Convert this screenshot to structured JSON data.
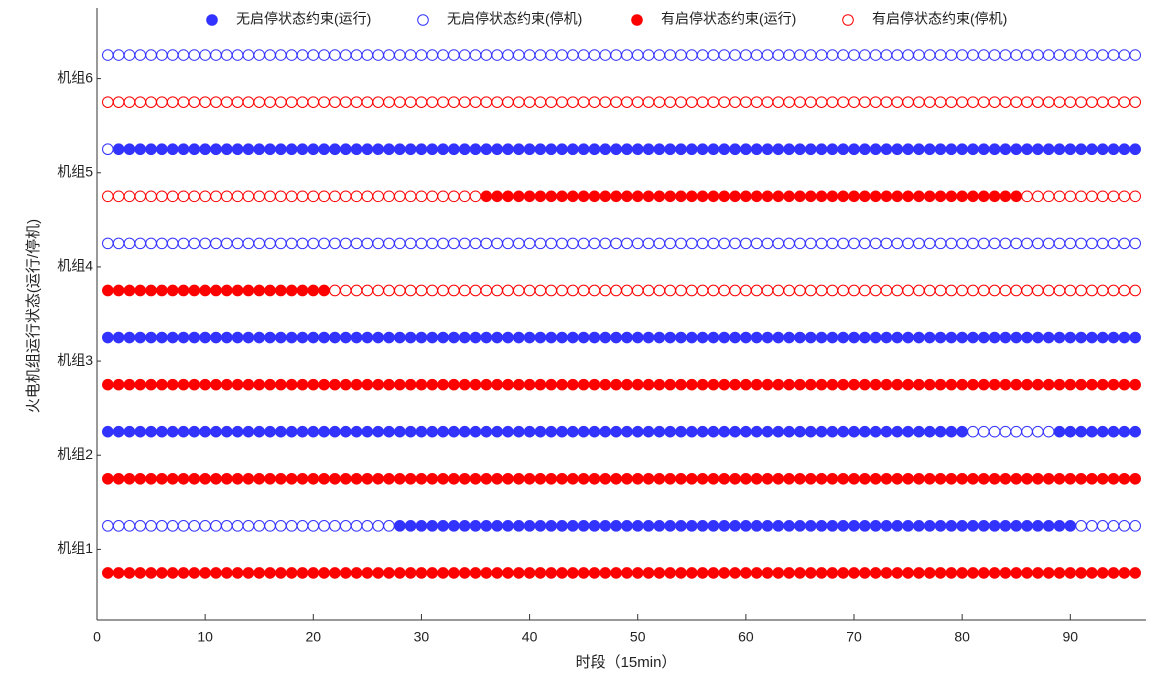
{
  "chart_data": {
    "type": "status",
    "xlabel": "时段（15min）",
    "ylabel": "火电机组运行状态(运行/停机)",
    "xlim": [
      0,
      97
    ],
    "xticks": [
      0,
      10,
      20,
      30,
      40,
      50,
      60,
      70,
      80,
      90
    ],
    "ylim": [
      0,
      13
    ],
    "yticks": [
      {
        "value": 1.5,
        "label": "机组1"
      },
      {
        "value": 3.5,
        "label": "机组2"
      },
      {
        "value": 5.5,
        "label": "机组3"
      },
      {
        "value": 7.5,
        "label": "机组4"
      },
      {
        "value": 9.5,
        "label": "机组5"
      },
      {
        "value": 11.5,
        "label": "机组6"
      }
    ],
    "legend": [
      {
        "name": "无启停状态约束(运行)",
        "color": "#3333ff",
        "filled": true
      },
      {
        "name": "无启停状态约束(停机)",
        "color": "#3333ff",
        "filled": false
      },
      {
        "name": "有启停状态约束(运行)",
        "color": "#ff0000",
        "filled": true
      },
      {
        "name": "有启停状态约束(停机)",
        "color": "#ff0000",
        "filled": false
      }
    ],
    "x": [
      1,
      2,
      3,
      4,
      5,
      6,
      7,
      8,
      9,
      10,
      11,
      12,
      13,
      14,
      15,
      16,
      17,
      18,
      19,
      20,
      21,
      22,
      23,
      24,
      25,
      26,
      27,
      28,
      29,
      30,
      31,
      32,
      33,
      34,
      35,
      36,
      37,
      38,
      39,
      40,
      41,
      42,
      43,
      44,
      45,
      46,
      47,
      48,
      49,
      50,
      51,
      52,
      53,
      54,
      55,
      56,
      57,
      58,
      59,
      60,
      61,
      62,
      63,
      64,
      65,
      66,
      67,
      68,
      69,
      70,
      71,
      72,
      73,
      74,
      75,
      76,
      77,
      78,
      79,
      80,
      81,
      82,
      83,
      84,
      85,
      86,
      87,
      88,
      89,
      90,
      91,
      92,
      93,
      94,
      95,
      96
    ],
    "series": [
      {
        "y": 1,
        "color": "#ff0000",
        "values": [
          1,
          1,
          1,
          1,
          1,
          1,
          1,
          1,
          1,
          1,
          1,
          1,
          1,
          1,
          1,
          1,
          1,
          1,
          1,
          1,
          1,
          1,
          1,
          1,
          1,
          1,
          1,
          1,
          1,
          1,
          1,
          1,
          1,
          1,
          1,
          1,
          1,
          1,
          1,
          1,
          1,
          1,
          1,
          1,
          1,
          1,
          1,
          1,
          1,
          1,
          1,
          1,
          1,
          1,
          1,
          1,
          1,
          1,
          1,
          1,
          1,
          1,
          1,
          1,
          1,
          1,
          1,
          1,
          1,
          1,
          1,
          1,
          1,
          1,
          1,
          1,
          1,
          1,
          1,
          1,
          1,
          1,
          1,
          1,
          1,
          1,
          1,
          1,
          1,
          1,
          1,
          1,
          1,
          1,
          1,
          1
        ]
      },
      {
        "y": 2,
        "color": "#3333ff",
        "values": [
          0,
          0,
          0,
          0,
          0,
          0,
          0,
          0,
          0,
          0,
          0,
          0,
          0,
          0,
          0,
          0,
          0,
          0,
          0,
          0,
          0,
          0,
          0,
          0,
          0,
          0,
          0,
          1,
          1,
          1,
          1,
          1,
          1,
          1,
          1,
          1,
          1,
          1,
          1,
          1,
          1,
          1,
          1,
          1,
          1,
          1,
          1,
          1,
          1,
          1,
          1,
          1,
          1,
          1,
          1,
          1,
          1,
          1,
          1,
          1,
          1,
          1,
          1,
          1,
          1,
          1,
          1,
          1,
          1,
          1,
          1,
          1,
          1,
          1,
          1,
          1,
          1,
          1,
          1,
          1,
          1,
          1,
          1,
          1,
          1,
          1,
          1,
          1,
          1,
          1,
          0,
          0,
          0,
          0,
          0,
          0
        ]
      },
      {
        "y": 3,
        "color": "#ff0000",
        "values": [
          1,
          1,
          1,
          1,
          1,
          1,
          1,
          1,
          1,
          1,
          1,
          1,
          1,
          1,
          1,
          1,
          1,
          1,
          1,
          1,
          1,
          1,
          1,
          1,
          1,
          1,
          1,
          1,
          1,
          1,
          1,
          1,
          1,
          1,
          1,
          1,
          1,
          1,
          1,
          1,
          1,
          1,
          1,
          1,
          1,
          1,
          1,
          1,
          1,
          1,
          1,
          1,
          1,
          1,
          1,
          1,
          1,
          1,
          1,
          1,
          1,
          1,
          1,
          1,
          1,
          1,
          1,
          1,
          1,
          1,
          1,
          1,
          1,
          1,
          1,
          1,
          1,
          1,
          1,
          1,
          1,
          1,
          1,
          1,
          1,
          1,
          1,
          1,
          1,
          1,
          1,
          1,
          1,
          1,
          1,
          1
        ]
      },
      {
        "y": 4,
        "color": "#3333ff",
        "values": [
          1,
          1,
          1,
          1,
          1,
          1,
          1,
          1,
          1,
          1,
          1,
          1,
          1,
          1,
          1,
          1,
          1,
          1,
          1,
          1,
          1,
          1,
          1,
          1,
          1,
          1,
          1,
          1,
          1,
          1,
          1,
          1,
          1,
          1,
          1,
          1,
          1,
          1,
          1,
          1,
          1,
          1,
          1,
          1,
          1,
          1,
          1,
          1,
          1,
          1,
          1,
          1,
          1,
          1,
          1,
          1,
          1,
          1,
          1,
          1,
          1,
          1,
          1,
          1,
          1,
          1,
          1,
          1,
          1,
          1,
          1,
          1,
          1,
          1,
          1,
          1,
          1,
          1,
          1,
          1,
          0,
          0,
          0,
          0,
          0,
          0,
          0,
          0,
          1,
          1,
          1,
          1,
          1,
          1,
          1,
          1
        ]
      },
      {
        "y": 5,
        "color": "#ff0000",
        "values": [
          1,
          1,
          1,
          1,
          1,
          1,
          1,
          1,
          1,
          1,
          1,
          1,
          1,
          1,
          1,
          1,
          1,
          1,
          1,
          1,
          1,
          1,
          1,
          1,
          1,
          1,
          1,
          1,
          1,
          1,
          1,
          1,
          1,
          1,
          1,
          1,
          1,
          1,
          1,
          1,
          1,
          1,
          1,
          1,
          1,
          1,
          1,
          1,
          1,
          1,
          1,
          1,
          1,
          1,
          1,
          1,
          1,
          1,
          1,
          1,
          1,
          1,
          1,
          1,
          1,
          1,
          1,
          1,
          1,
          1,
          1,
          1,
          1,
          1,
          1,
          1,
          1,
          1,
          1,
          1,
          1,
          1,
          1,
          1,
          1,
          1,
          1,
          1,
          1,
          1,
          1,
          1,
          1,
          1,
          1,
          1
        ]
      },
      {
        "y": 6,
        "color": "#3333ff",
        "values": [
          1,
          1,
          1,
          1,
          1,
          1,
          1,
          1,
          1,
          1,
          1,
          1,
          1,
          1,
          1,
          1,
          1,
          1,
          1,
          1,
          1,
          1,
          1,
          1,
          1,
          1,
          1,
          1,
          1,
          1,
          1,
          1,
          1,
          1,
          1,
          1,
          1,
          1,
          1,
          1,
          1,
          1,
          1,
          1,
          1,
          1,
          1,
          1,
          1,
          1,
          1,
          1,
          1,
          1,
          1,
          1,
          1,
          1,
          1,
          1,
          1,
          1,
          1,
          1,
          1,
          1,
          1,
          1,
          1,
          1,
          1,
          1,
          1,
          1,
          1,
          1,
          1,
          1,
          1,
          1,
          1,
          1,
          1,
          1,
          1,
          1,
          1,
          1,
          1,
          1,
          1,
          1,
          1,
          1,
          1,
          1
        ]
      },
      {
        "y": 7,
        "color": "#ff0000",
        "values": [
          1,
          1,
          1,
          1,
          1,
          1,
          1,
          1,
          1,
          1,
          1,
          1,
          1,
          1,
          1,
          1,
          1,
          1,
          1,
          1,
          1,
          0,
          0,
          0,
          0,
          0,
          0,
          0,
          0,
          0,
          0,
          0,
          0,
          0,
          0,
          0,
          0,
          0,
          0,
          0,
          0,
          0,
          0,
          0,
          0,
          0,
          0,
          0,
          0,
          0,
          0,
          0,
          0,
          0,
          0,
          0,
          0,
          0,
          0,
          0,
          0,
          0,
          0,
          0,
          0,
          0,
          0,
          0,
          0,
          0,
          0,
          0,
          0,
          0,
          0,
          0,
          0,
          0,
          0,
          0,
          0,
          0,
          0,
          0,
          0,
          0,
          0,
          0,
          0,
          0,
          0,
          0,
          0,
          0,
          0,
          0
        ]
      },
      {
        "y": 8,
        "color": "#3333ff",
        "values": [
          0,
          0,
          0,
          0,
          0,
          0,
          0,
          0,
          0,
          0,
          0,
          0,
          0,
          0,
          0,
          0,
          0,
          0,
          0,
          0,
          0,
          0,
          0,
          0,
          0,
          0,
          0,
          0,
          0,
          0,
          0,
          0,
          0,
          0,
          0,
          0,
          0,
          0,
          0,
          0,
          0,
          0,
          0,
          0,
          0,
          0,
          0,
          0,
          0,
          0,
          0,
          0,
          0,
          0,
          0,
          0,
          0,
          0,
          0,
          0,
          0,
          0,
          0,
          0,
          0,
          0,
          0,
          0,
          0,
          0,
          0,
          0,
          0,
          0,
          0,
          0,
          0,
          0,
          0,
          0,
          0,
          0,
          0,
          0,
          0,
          0,
          0,
          0,
          0,
          0,
          0,
          0,
          0,
          0,
          0,
          0
        ]
      },
      {
        "y": 9,
        "color": "#ff0000",
        "values": [
          0,
          0,
          0,
          0,
          0,
          0,
          0,
          0,
          0,
          0,
          0,
          0,
          0,
          0,
          0,
          0,
          0,
          0,
          0,
          0,
          0,
          0,
          0,
          0,
          0,
          0,
          0,
          0,
          0,
          0,
          0,
          0,
          0,
          0,
          0,
          1,
          1,
          1,
          1,
          1,
          1,
          1,
          1,
          1,
          1,
          1,
          1,
          1,
          1,
          1,
          1,
          1,
          1,
          1,
          1,
          1,
          1,
          1,
          1,
          1,
          1,
          1,
          1,
          1,
          1,
          1,
          1,
          1,
          1,
          1,
          1,
          1,
          1,
          1,
          1,
          1,
          1,
          1,
          1,
          1,
          1,
          1,
          1,
          1,
          1,
          0,
          0,
          0,
          0,
          0,
          0,
          0,
          0,
          0,
          0,
          0
        ]
      },
      {
        "y": 10,
        "color": "#3333ff",
        "values": [
          0,
          1,
          1,
          1,
          1,
          1,
          1,
          1,
          1,
          1,
          1,
          1,
          1,
          1,
          1,
          1,
          1,
          1,
          1,
          1,
          1,
          1,
          1,
          1,
          1,
          1,
          1,
          1,
          1,
          1,
          1,
          1,
          1,
          1,
          1,
          1,
          1,
          1,
          1,
          1,
          1,
          1,
          1,
          1,
          1,
          1,
          1,
          1,
          1,
          1,
          1,
          1,
          1,
          1,
          1,
          1,
          1,
          1,
          1,
          1,
          1,
          1,
          1,
          1,
          1,
          1,
          1,
          1,
          1,
          1,
          1,
          1,
          1,
          1,
          1,
          1,
          1,
          1,
          1,
          1,
          1,
          1,
          1,
          1,
          1,
          1,
          1,
          1,
          1,
          1,
          1,
          1,
          1,
          1,
          1,
          1
        ]
      },
      {
        "y": 11,
        "color": "#ff0000",
        "values": [
          0,
          0,
          0,
          0,
          0,
          0,
          0,
          0,
          0,
          0,
          0,
          0,
          0,
          0,
          0,
          0,
          0,
          0,
          0,
          0,
          0,
          0,
          0,
          0,
          0,
          0,
          0,
          0,
          0,
          0,
          0,
          0,
          0,
          0,
          0,
          0,
          0,
          0,
          0,
          0,
          0,
          0,
          0,
          0,
          0,
          0,
          0,
          0,
          0,
          0,
          0,
          0,
          0,
          0,
          0,
          0,
          0,
          0,
          0,
          0,
          0,
          0,
          0,
          0,
          0,
          0,
          0,
          0,
          0,
          0,
          0,
          0,
          0,
          0,
          0,
          0,
          0,
          0,
          0,
          0,
          0,
          0,
          0,
          0,
          0,
          0,
          0,
          0,
          0,
          0,
          0,
          0,
          0,
          0,
          0,
          0
        ]
      },
      {
        "y": 12,
        "color": "#3333ff",
        "values": [
          0,
          0,
          0,
          0,
          0,
          0,
          0,
          0,
          0,
          0,
          0,
          0,
          0,
          0,
          0,
          0,
          0,
          0,
          0,
          0,
          0,
          0,
          0,
          0,
          0,
          0,
          0,
          0,
          0,
          0,
          0,
          0,
          0,
          0,
          0,
          0,
          0,
          0,
          0,
          0,
          0,
          0,
          0,
          0,
          0,
          0,
          0,
          0,
          0,
          0,
          0,
          0,
          0,
          0,
          0,
          0,
          0,
          0,
          0,
          0,
          0,
          0,
          0,
          0,
          0,
          0,
          0,
          0,
          0,
          0,
          0,
          0,
          0,
          0,
          0,
          0,
          0,
          0,
          0,
          0,
          0,
          0,
          0,
          0,
          0,
          0,
          0,
          0,
          0,
          0,
          0,
          0,
          0,
          0,
          0,
          0
        ]
      }
    ]
  }
}
